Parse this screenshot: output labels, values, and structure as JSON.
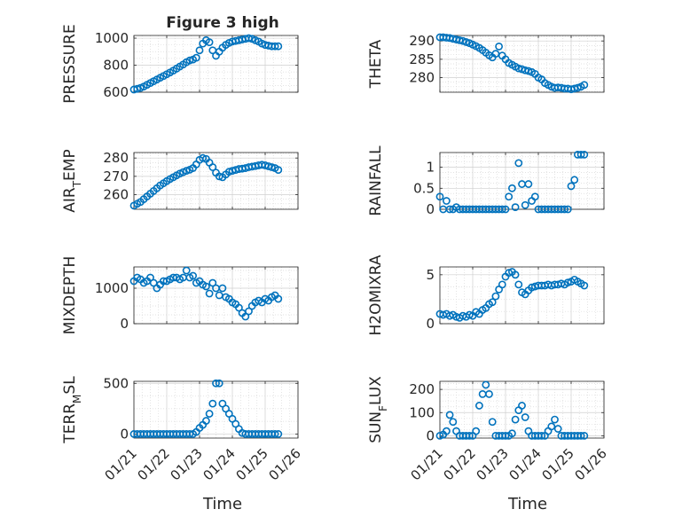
{
  "figure": {
    "title": "Figure 3 high",
    "marker_color": "#0072BD",
    "axis_color": "#262626",
    "grid_color": "#d9d9d9",
    "x_tick_labels": [
      "01/21",
      "01/22",
      "01/23",
      "01/24",
      "01/25",
      "01/26"
    ],
    "x_label": "Time"
  },
  "chart_data": [
    {
      "type": "scatter",
      "title": "Figure 3 high",
      "ylabel": "PRESSURE",
      "ylabel_parts": [
        {
          "text": "PRESSURE",
          "sub": false
        }
      ],
      "xlim": [
        0,
        5
      ],
      "ylim": [
        600,
        1020
      ],
      "yticks": [
        600,
        800,
        1000
      ],
      "grid": true,
      "x": [
        0,
        0.1,
        0.2,
        0.3,
        0.4,
        0.5,
        0.6,
        0.7,
        0.8,
        0.9,
        1.0,
        1.1,
        1.2,
        1.3,
        1.4,
        1.5,
        1.6,
        1.7,
        1.8,
        1.9,
        2.0,
        2.1,
        2.2,
        2.3,
        2.4,
        2.5,
        2.6,
        2.7,
        2.8,
        2.9,
        3.0,
        3.1,
        3.2,
        3.3,
        3.4,
        3.5,
        3.6,
        3.7,
        3.8,
        3.9,
        4.0,
        4.1,
        4.2,
        4.3,
        4.4
      ],
      "y": [
        620,
        625,
        632,
        642,
        655,
        668,
        681,
        694,
        707,
        720,
        733,
        746,
        760,
        775,
        790,
        805,
        822,
        835,
        842,
        855,
        910,
        960,
        985,
        970,
        910,
        870,
        900,
        930,
        950,
        965,
        975,
        980,
        985,
        990,
        995,
        1000,
        995,
        985,
        975,
        960,
        950,
        945,
        940,
        940,
        940
      ]
    },
    {
      "type": "scatter",
      "ylabel": "THETA",
      "ylabel_parts": [
        {
          "text": "THETA",
          "sub": false
        }
      ],
      "xlim": [
        0,
        5
      ],
      "ylim": [
        276,
        291.5
      ],
      "yticks": [
        280,
        285,
        290
      ],
      "grid": true,
      "x": [
        0,
        0.1,
        0.2,
        0.3,
        0.4,
        0.5,
        0.6,
        0.7,
        0.8,
        0.9,
        1.0,
        1.1,
        1.2,
        1.3,
        1.4,
        1.5,
        1.6,
        1.7,
        1.8,
        1.9,
        2.0,
        2.1,
        2.2,
        2.3,
        2.4,
        2.5,
        2.6,
        2.7,
        2.8,
        2.9,
        3.0,
        3.1,
        3.2,
        3.3,
        3.4,
        3.5,
        3.6,
        3.7,
        3.8,
        3.9,
        4.0,
        4.1,
        4.2,
        4.3,
        4.4
      ],
      "y": [
        291.0,
        291.0,
        290.9,
        290.8,
        290.6,
        290.4,
        290.2,
        290.0,
        289.7,
        289.4,
        289.0,
        288.6,
        288.1,
        287.5,
        286.8,
        286.1,
        285.5,
        286.5,
        288.5,
        286.0,
        285.0,
        284.0,
        283.5,
        283.0,
        282.5,
        282.3,
        282.0,
        281.8,
        281.5,
        281.0,
        280.0,
        279.5,
        278.5,
        278.0,
        277.5,
        277.2,
        277.3,
        277.2,
        277.0,
        277.0,
        276.8,
        277.0,
        277.2,
        277.5,
        278.0
      ]
    },
    {
      "type": "scatter",
      "ylabel": "AIRTEMP",
      "ylabel_parts": [
        {
          "text": "AIR",
          "sub": false
        },
        {
          "text": "T",
          "sub": true
        },
        {
          "text": "EMP",
          "sub": false
        }
      ],
      "xlim": [
        0,
        5
      ],
      "ylim": [
        252,
        283
      ],
      "yticks": [
        260,
        270,
        280
      ],
      "grid": true,
      "x": [
        0,
        0.1,
        0.2,
        0.3,
        0.4,
        0.5,
        0.6,
        0.7,
        0.8,
        0.9,
        1.0,
        1.1,
        1.2,
        1.3,
        1.4,
        1.5,
        1.6,
        1.7,
        1.8,
        1.9,
        2.0,
        2.1,
        2.2,
        2.3,
        2.4,
        2.5,
        2.6,
        2.7,
        2.8,
        2.9,
        3.0,
        3.1,
        3.2,
        3.3,
        3.4,
        3.5,
        3.6,
        3.7,
        3.8,
        3.9,
        4.0,
        4.1,
        4.2,
        4.3,
        4.4
      ],
      "y": [
        254,
        255,
        256,
        257.5,
        259,
        260.5,
        262,
        263.5,
        265,
        266.2,
        267.4,
        268.5,
        269.5,
        270.5,
        271.5,
        272.3,
        273,
        273.6,
        274.5,
        276.5,
        279,
        280,
        279.5,
        277.5,
        275,
        272,
        270,
        269.5,
        271,
        272.5,
        273,
        273.5,
        274,
        274.2,
        274.5,
        275,
        275.3,
        275.6,
        276,
        276.3,
        276,
        275.5,
        275,
        274.5,
        273.5
      ]
    },
    {
      "type": "scatter",
      "ylabel": "RAINFALL",
      "ylabel_parts": [
        {
          "text": "RAINFALL",
          "sub": false
        }
      ],
      "xlim": [
        0,
        5
      ],
      "ylim": [
        0,
        1.35
      ],
      "yticks": [
        0,
        0.5,
        1
      ],
      "grid": true,
      "x": [
        0,
        0.1,
        0.2,
        0.3,
        0.4,
        0.5,
        0.6,
        0.7,
        0.8,
        0.9,
        1.0,
        1.1,
        1.2,
        1.3,
        1.4,
        1.5,
        1.6,
        1.7,
        1.8,
        1.9,
        2.0,
        2.1,
        2.2,
        2.3,
        2.4,
        2.5,
        2.6,
        2.7,
        2.8,
        2.9,
        3.0,
        3.1,
        3.2,
        3.3,
        3.4,
        3.5,
        3.6,
        3.7,
        3.8,
        3.9,
        4.0,
        4.1,
        4.2,
        4.3,
        4.4
      ],
      "y": [
        0.3,
        0,
        0.2,
        0,
        0,
        0.05,
        0,
        0,
        0,
        0,
        0,
        0,
        0,
        0,
        0,
        0,
        0,
        0,
        0,
        0,
        0,
        0.3,
        0.5,
        0.05,
        1.1,
        0.6,
        0.1,
        0.6,
        0.2,
        0.3,
        0,
        0,
        0,
        0,
        0,
        0,
        0,
        0,
        0,
        0,
        0.55,
        0.7,
        1.3,
        1.3,
        1.3
      ]
    },
    {
      "type": "scatter",
      "ylabel": "MIXDEPTH",
      "ylabel_parts": [
        {
          "text": "MIXDEPTH",
          "sub": false
        }
      ],
      "xlim": [
        0,
        5
      ],
      "ylim": [
        0,
        1600
      ],
      "yticks": [
        0,
        1000
      ],
      "grid": true,
      "x": [
        0,
        0.1,
        0.2,
        0.3,
        0.4,
        0.5,
        0.6,
        0.7,
        0.8,
        0.9,
        1.0,
        1.1,
        1.2,
        1.3,
        1.4,
        1.5,
        1.6,
        1.7,
        1.8,
        1.9,
        2.0,
        2.1,
        2.2,
        2.3,
        2.4,
        2.5,
        2.6,
        2.7,
        2.8,
        2.9,
        3.0,
        3.1,
        3.2,
        3.3,
        3.4,
        3.5,
        3.6,
        3.7,
        3.8,
        3.9,
        4.0,
        4.1,
        4.2,
        4.3,
        4.4
      ],
      "y": [
        1200,
        1300,
        1250,
        1150,
        1200,
        1300,
        1150,
        1000,
        1100,
        1200,
        1200,
        1250,
        1300,
        1300,
        1250,
        1300,
        1500,
        1300,
        1350,
        1150,
        1200,
        1100,
        1050,
        850,
        1150,
        1000,
        800,
        1000,
        750,
        700,
        600,
        550,
        450,
        300,
        200,
        350,
        500,
        600,
        650,
        600,
        700,
        650,
        750,
        800,
        700
      ]
    },
    {
      "type": "scatter",
      "ylabel": "H2OMIXRA",
      "ylabel_parts": [
        {
          "text": "H2OMIXRA",
          "sub": false
        }
      ],
      "xlim": [
        0,
        5
      ],
      "ylim": [
        0,
        5.8
      ],
      "yticks": [
        0,
        5
      ],
      "grid": true,
      "x": [
        0,
        0.1,
        0.2,
        0.3,
        0.4,
        0.5,
        0.6,
        0.7,
        0.8,
        0.9,
        1.0,
        1.1,
        1.2,
        1.3,
        1.4,
        1.5,
        1.6,
        1.7,
        1.8,
        1.9,
        2.0,
        2.1,
        2.2,
        2.3,
        2.4,
        2.5,
        2.6,
        2.7,
        2.8,
        2.9,
        3.0,
        3.1,
        3.2,
        3.3,
        3.4,
        3.5,
        3.6,
        3.7,
        3.8,
        3.9,
        4.0,
        4.1,
        4.2,
        4.3,
        4.4
      ],
      "y": [
        1.0,
        0.9,
        1.0,
        0.8,
        0.9,
        0.7,
        0.6,
        0.8,
        0.7,
        0.9,
        0.8,
        1.2,
        1.0,
        1.4,
        1.6,
        2.0,
        2.2,
        2.8,
        3.5,
        4.0,
        4.8,
        5.2,
        5.3,
        5.0,
        4.0,
        3.2,
        3.0,
        3.4,
        3.7,
        3.8,
        3.9,
        3.9,
        3.9,
        4.0,
        3.9,
        4.0,
        4.0,
        4.1,
        4.0,
        4.2,
        4.3,
        4.5,
        4.3,
        4.1,
        3.9
      ]
    },
    {
      "type": "scatter",
      "ylabel": "TERRMSL",
      "ylabel_parts": [
        {
          "text": "TERR",
          "sub": false
        },
        {
          "text": "M",
          "sub": true
        },
        {
          "text": "SL",
          "sub": false
        }
      ],
      "xlim": [
        0,
        5
      ],
      "ylim": [
        -40,
        520
      ],
      "yticks": [
        0,
        500
      ],
      "grid": true,
      "x": [
        0,
        0.1,
        0.2,
        0.3,
        0.4,
        0.5,
        0.6,
        0.7,
        0.8,
        0.9,
        1.0,
        1.1,
        1.2,
        1.3,
        1.4,
        1.5,
        1.6,
        1.7,
        1.8,
        1.9,
        2.0,
        2.1,
        2.2,
        2.3,
        2.4,
        2.5,
        2.6,
        2.7,
        2.8,
        2.9,
        3.0,
        3.1,
        3.2,
        3.3,
        3.4,
        3.5,
        3.6,
        3.7,
        3.8,
        3.9,
        4.0,
        4.1,
        4.2,
        4.3,
        4.4
      ],
      "y": [
        0,
        0,
        0,
        0,
        0,
        0,
        0,
        0,
        0,
        0,
        0,
        0,
        0,
        0,
        0,
        0,
        0,
        0,
        0,
        20,
        60,
        90,
        130,
        200,
        300,
        500,
        500,
        300,
        250,
        200,
        150,
        100,
        50,
        10,
        0,
        0,
        0,
        0,
        0,
        0,
        0,
        0,
        0,
        0,
        0
      ]
    },
    {
      "type": "scatter",
      "ylabel": "SUNFLUX",
      "ylabel_parts": [
        {
          "text": "SUN",
          "sub": false
        },
        {
          "text": "F",
          "sub": true
        },
        {
          "text": "LUX",
          "sub": false
        }
      ],
      "xlim": [
        0,
        5
      ],
      "ylim": [
        -10,
        235
      ],
      "yticks": [
        0,
        100,
        200
      ],
      "grid": true,
      "x": [
        0,
        0.1,
        0.2,
        0.3,
        0.4,
        0.5,
        0.6,
        0.7,
        0.8,
        0.9,
        1.0,
        1.1,
        1.2,
        1.3,
        1.4,
        1.5,
        1.6,
        1.7,
        1.8,
        1.9,
        2.0,
        2.1,
        2.2,
        2.3,
        2.4,
        2.5,
        2.6,
        2.7,
        2.8,
        2.9,
        3.0,
        3.1,
        3.2,
        3.3,
        3.4,
        3.5,
        3.6,
        3.7,
        3.8,
        3.9,
        4.0,
        4.1,
        4.2,
        4.3,
        4.4
      ],
      "y": [
        0,
        5,
        20,
        90,
        60,
        20,
        0,
        0,
        0,
        0,
        0,
        20,
        130,
        180,
        220,
        180,
        60,
        0,
        0,
        0,
        0,
        0,
        10,
        70,
        110,
        130,
        80,
        20,
        0,
        0,
        0,
        0,
        0,
        20,
        40,
        70,
        30,
        0,
        0,
        0,
        0,
        0,
        0,
        0,
        0
      ]
    }
  ]
}
